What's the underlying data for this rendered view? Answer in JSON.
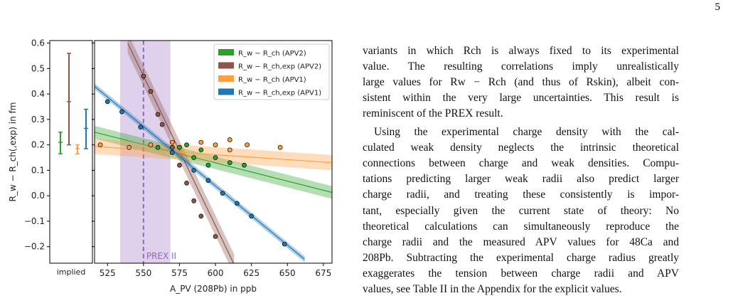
{
  "page_number": "5",
  "chart_data": {
    "type": "scatter",
    "ylabel": "R_w − R_ch(,exp) in fm",
    "xlabel": "A_PV (208Pb) in ppb",
    "implied_label": "implied",
    "span_label": "PREX II",
    "span": [
      533.8,
      568.7
    ],
    "span_center": 550,
    "xlim": [
      516,
      681
    ],
    "ylim": [
      -0.265,
      0.61
    ],
    "xticks": [
      525,
      550,
      575,
      600,
      625,
      650,
      675
    ],
    "yticks": [
      {
        "value": -0.2,
        "label": "−0.2"
      },
      {
        "value": -0.1,
        "label": "−0.1"
      },
      {
        "value": 0.0,
        "label": "0.0"
      },
      0.1,
      0.2,
      0.3,
      0.4,
      0.5,
      0.6
    ],
    "legend": "upper right",
    "series": [
      {
        "name": "R_w − R_ch (APV2)",
        "color": "#2ca02c",
        "implied": 0.21,
        "implied_range": [
          0.165,
          0.25
        ],
        "fit_x": [
          516,
          681
        ],
        "fit_y": [
          0.25,
          0.013
        ],
        "band": 0.025,
        "x": [
          560,
          570,
          575,
          580,
          585,
          590,
          595,
          600,
          610,
          620
        ],
        "values": [
          0.19,
          0.17,
          0.19,
          0.2,
          0.15,
          0.18,
          0.12,
          0.15,
          0.13,
          0.12
        ]
      },
      {
        "name": "R_w − R_ch,exp (APV2)",
        "color": "#8c564b",
        "implied": 0.37,
        "implied_range": [
          0.2,
          0.56
        ],
        "fit_x": [
          539,
          613
        ],
        "fit_y": [
          0.6,
          -0.27
        ],
        "band": 0.04,
        "x": [
          550,
          555,
          560,
          563,
          570,
          575,
          580,
          585,
          590,
          600
        ],
        "values": [
          0.47,
          0.41,
          0.32,
          0.28,
          0.19,
          0.12,
          0.05,
          -0.02,
          -0.08,
          -0.16
        ]
      },
      {
        "name": "R_w − R_ch (APV1)",
        "color": "#ff9f40",
        "implied": 0.185,
        "implied_range": [
          0.165,
          0.2
        ],
        "fit_x": [
          516,
          681
        ],
        "fit_y": [
          0.194,
          0.13
        ],
        "band": 0.03,
        "x": [
          520,
          540,
          555,
          570,
          590,
          600,
          610,
          610,
          622,
          645
        ],
        "values": [
          0.2,
          0.19,
          0.2,
          0.21,
          0.21,
          0.2,
          0.22,
          0.18,
          0.2,
          0.19
        ]
      },
      {
        "name": "R_w − R_ch,exp (APV1)",
        "color": "#1f77b4",
        "implied": 0.265,
        "implied_range": [
          0.185,
          0.34
        ],
        "fit_x": [
          516,
          662
        ],
        "fit_y": [
          0.43,
          -0.25
        ],
        "band": 0.012,
        "x": [
          525,
          535,
          548,
          570,
          585,
          595,
          605,
          615,
          625,
          648
        ],
        "values": [
          0.37,
          0.33,
          0.27,
          0.17,
          0.1,
          0.06,
          0.01,
          -0.03,
          -0.08,
          -0.19
        ]
      }
    ]
  },
  "text": {
    "lines": [
      "variants in which Rch is always fixed to its experimental",
      "value. The resulting correlations imply unrealistically",
      "large values for Rw − Rch (and thus of Rskin), albeit con-",
      "sistent within the very large uncertainties. This result is",
      "reminiscent of the PREX result.",
      "Using the experimental charge density with the cal-",
      "culated weak density neglects the intrinsic theoretical",
      "connections between charge and weak densities. Compu-",
      "tations predicting larger weak radii also predict larger",
      "charge radii, and treating these consistently is impor-",
      "tant, especially given the current state of theory: No",
      "theoretical calculations can simultaneously reproduce the",
      "charge radii and the measured APV values for 48Ca and",
      "208Pb. Subtracting the experimental charge radius greatly",
      "exaggerates the tension between charge radii and APV",
      "values, see Table II in the Appendix for the explicit values."
    ]
  }
}
